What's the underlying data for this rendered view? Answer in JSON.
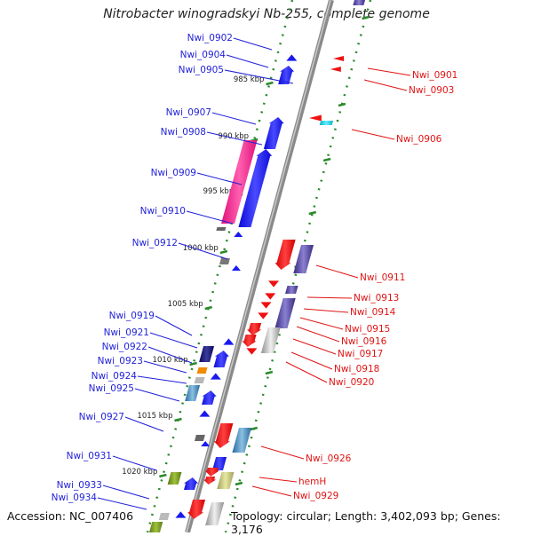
{
  "title": "Nitrobacter winogradskyi Nb-255, complete genome",
  "footer": {
    "accession": "Accession: NC_007406",
    "topology": "Topology: circular; Length: 3,402,093 bp; Genes: 3,176"
  },
  "colors": {
    "backbone": "#8a8a8a",
    "ruler": "#2a8a2a",
    "forward_label": "#1f1fd8",
    "reverse_label": "#e01414",
    "forward_gene": "#1a1aee",
    "reverse_gene": "#ee1010"
  },
  "ruler": [
    {
      "kbp": 985,
      "label": "985 kbp"
    },
    {
      "kbp": 990,
      "label": "990 kbp"
    },
    {
      "kbp": 995,
      "label": "995 kbp"
    },
    {
      "kbp": 1000,
      "label": "1000 kbp"
    },
    {
      "kbp": 1005,
      "label": "1005 kbp"
    },
    {
      "kbp": 1010,
      "label": "1010 kbp"
    },
    {
      "kbp": 1015,
      "label": "1015 kbp"
    },
    {
      "kbp": 1020,
      "label": "1020 kbp"
    }
  ],
  "forward_labels": [
    "Nwi_0902",
    "Nwi_0904",
    "Nwi_0905",
    "Nwi_0907",
    "Nwi_0908",
    "Nwi_0909",
    "Nwi_0910",
    "Nwi_0912",
    "Nwi_0919",
    "Nwi_0921",
    "Nwi_0922",
    "Nwi_0923",
    "Nwi_0924",
    "Nwi_0925",
    "Nwi_0927",
    "Nwi_0931",
    "Nwi_0933",
    "Nwi_0934"
  ],
  "reverse_labels": [
    "Nwi_0901",
    "Nwi_0903",
    "Nwi_0906",
    "Nwi_0911",
    "Nwi_0913",
    "Nwi_0914",
    "Nwi_0915",
    "Nwi_0916",
    "Nwi_0917",
    "Nwi_0918",
    "Nwi_0920",
    "Nwi_0926",
    "hemH",
    "Nwi_0929"
  ]
}
